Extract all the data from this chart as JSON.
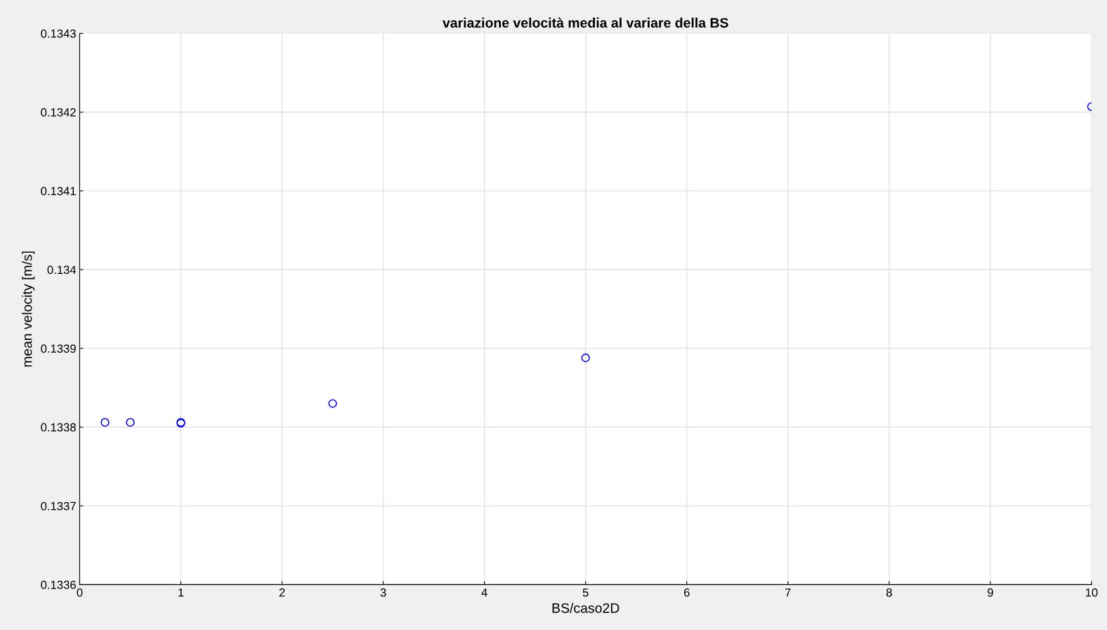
{
  "chart_data": {
    "type": "scatter",
    "title": "variazione velocità media al variare della BS",
    "xlabel": "BS/caso2D",
    "ylabel": "mean velocity [m/s]",
    "x": [
      0.25,
      0.5,
      1,
      1,
      2.5,
      5,
      10
    ],
    "series": [
      {
        "color": "#0000ff",
        "values": [
          0.133806,
          0.133806,
          0.133806,
          0.133805,
          0.13383,
          0.133888,
          0.134207
        ]
      }
    ],
    "marker": "circle",
    "grid": true,
    "xlim": [
      0,
      10
    ],
    "xticks": [
      0,
      1,
      2,
      3,
      4,
      5,
      6,
      7,
      8,
      9,
      10
    ],
    "ylim": [
      0.1336,
      0.1343
    ],
    "yticks": [
      {
        "value": 0.1336,
        "label": "0.1336"
      },
      {
        "value": 0.1337,
        "label": "0.1337"
      },
      {
        "value": 0.1338,
        "label": "0.1338"
      },
      {
        "value": 0.1339,
        "label": "0.1339"
      },
      {
        "value": 0.134,
        "label": "0.134"
      },
      {
        "value": 0.1341,
        "label": "0.1341"
      },
      {
        "value": 0.1342,
        "label": "0.1342"
      },
      {
        "value": 0.1343,
        "label": "0.1343"
      }
    ]
  }
}
